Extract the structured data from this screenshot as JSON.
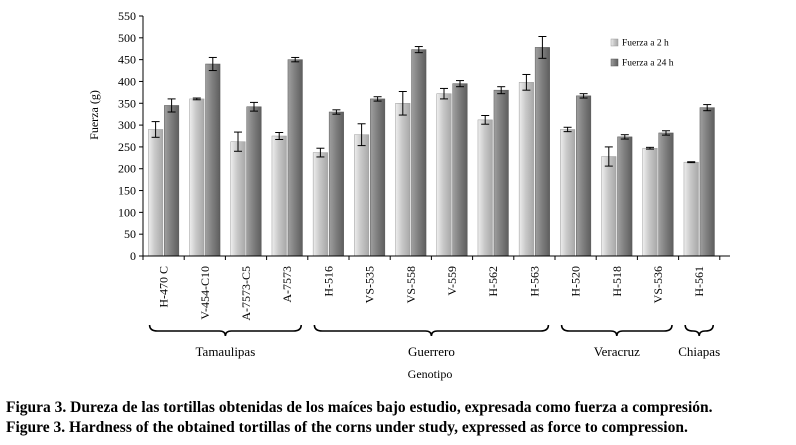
{
  "chart_data": {
    "type": "bar",
    "ylabel": "Fuerza (g)",
    "xlabel": "Genotipo",
    "ylim": [
      0,
      550
    ],
    "yticks": [
      0,
      50,
      100,
      150,
      200,
      250,
      300,
      350,
      400,
      450,
      500,
      550
    ],
    "categories": [
      "H-470 C",
      "V-454-C10",
      "A-7573-C5",
      "A-7573",
      "H-516",
      "VS-535",
      "VS-558",
      "V-559",
      "H-562",
      "H-563",
      "H-520",
      "H-518",
      "VS-536",
      "H-561"
    ],
    "series": [
      {
        "name": "Fuerza a 2 h",
        "color": "#c8c8c8",
        "values": [
          290,
          360,
          262,
          275,
          237,
          278,
          350,
          372,
          312,
          398,
          290,
          228,
          247,
          215
        ],
        "errors": [
          18,
          2,
          22,
          8,
          10,
          25,
          27,
          12,
          10,
          18,
          5,
          22,
          2,
          1
        ]
      },
      {
        "name": "Fuerza a 24 h",
        "color": "#808080",
        "values": [
          345,
          440,
          342,
          450,
          330,
          360,
          473,
          395,
          380,
          478,
          367,
          273,
          282,
          340
        ],
        "errors": [
          15,
          15,
          10,
          5,
          5,
          5,
          7,
          7,
          8,
          25,
          5,
          5,
          5,
          7
        ]
      }
    ],
    "groups": [
      {
        "label": "Tamaulipas",
        "start": 0,
        "end": 3
      },
      {
        "label": "Guerrero",
        "start": 4,
        "end": 9
      },
      {
        "label": "Veracruz",
        "start": 10,
        "end": 12
      },
      {
        "label": "Chiapas",
        "start": 13,
        "end": 13
      }
    ],
    "legend_position": "top-right",
    "grid": false
  },
  "caption": {
    "spanish": "Figura 3. Dureza de las tortillas obtenidas de los maíces bajo estudio, expresada como fuerza a compresión.",
    "english": "Figure 3. Hardness of the obtained tortillas of the corns under study, expressed as force to compression."
  },
  "colors": {
    "axis": "#000000",
    "error_bar": "#000000"
  }
}
